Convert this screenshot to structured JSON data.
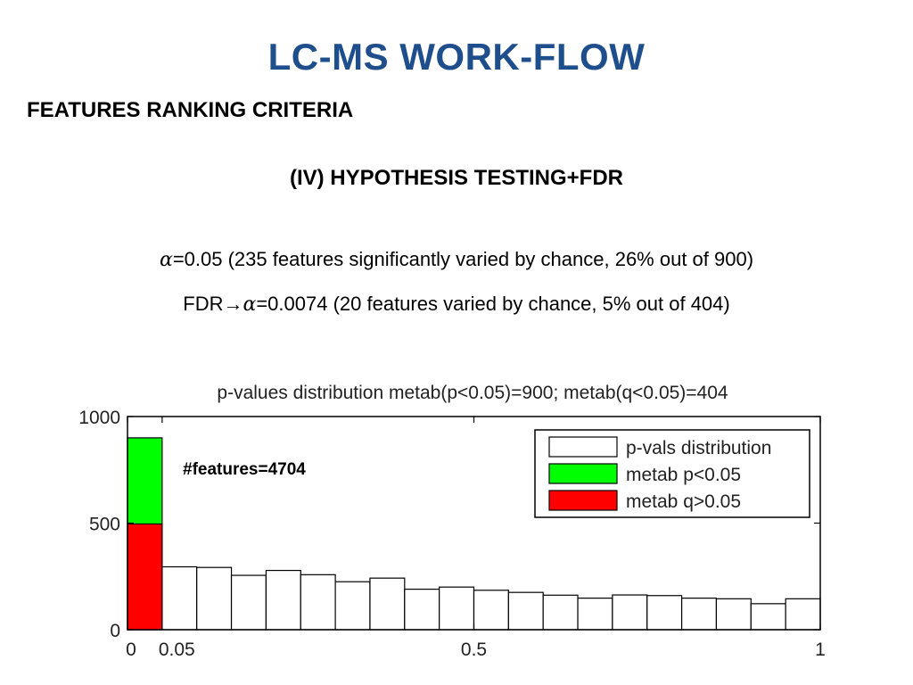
{
  "slide": {
    "title": "LC-MS WORK-FLOW",
    "subtitle": "FEATURES RANKING CRITERIA",
    "section": "(IV) HYPOTHESIS TESTING+FDR",
    "line1": {
      "alpha_symbol": "α",
      "text": "=0.05 (235 features significantly varied by chance, 26% out of 900)"
    },
    "line2": {
      "prefix": "FDR",
      "arrow": "→",
      "alpha_symbol": "α",
      "text": "=0.0074 (20 features varied by chance, 5% out of 404)"
    }
  },
  "chart_data": {
    "type": "bar",
    "title": "p-values distribution  metab(p<0.05)=900; metab(q<0.05)=404",
    "annotation": "#features=4704",
    "xlim": [
      0,
      1
    ],
    "ylim": [
      0,
      1000
    ],
    "x_ticks": [
      {
        "value": 0,
        "label": "0"
      },
      {
        "value": 0.05,
        "label": "0.05"
      },
      {
        "value": 0.5,
        "label": "0.5"
      },
      {
        "value": 1,
        "label": "1"
      }
    ],
    "y_ticks": [
      {
        "value": 0,
        "label": "0"
      },
      {
        "value": 500,
        "label": "500"
      },
      {
        "value": 1000,
        "label": "1000"
      }
    ],
    "bin_width": 0.05,
    "bin_starts": [
      0,
      0.05,
      0.1,
      0.15,
      0.2,
      0.25,
      0.3,
      0.35,
      0.4,
      0.45,
      0.5,
      0.55,
      0.6,
      0.65,
      0.7,
      0.75,
      0.8,
      0.85,
      0.9,
      0.95
    ],
    "series": [
      {
        "name": "p-vals distribution",
        "color": "#ffffff",
        "values": [
          900,
          295,
          292,
          255,
          278,
          258,
          225,
          242,
          190,
          200,
          185,
          175,
          162,
          148,
          163,
          160,
          148,
          145,
          122,
          145
        ]
      },
      {
        "name": "metab p<0.05",
        "color": "#00ff00",
        "values": [
          900
        ]
      },
      {
        "name": "metab q>0.05",
        "color": "#ff0000",
        "values": [
          496
        ]
      }
    ],
    "legend_position": "top-right",
    "grid": false
  }
}
